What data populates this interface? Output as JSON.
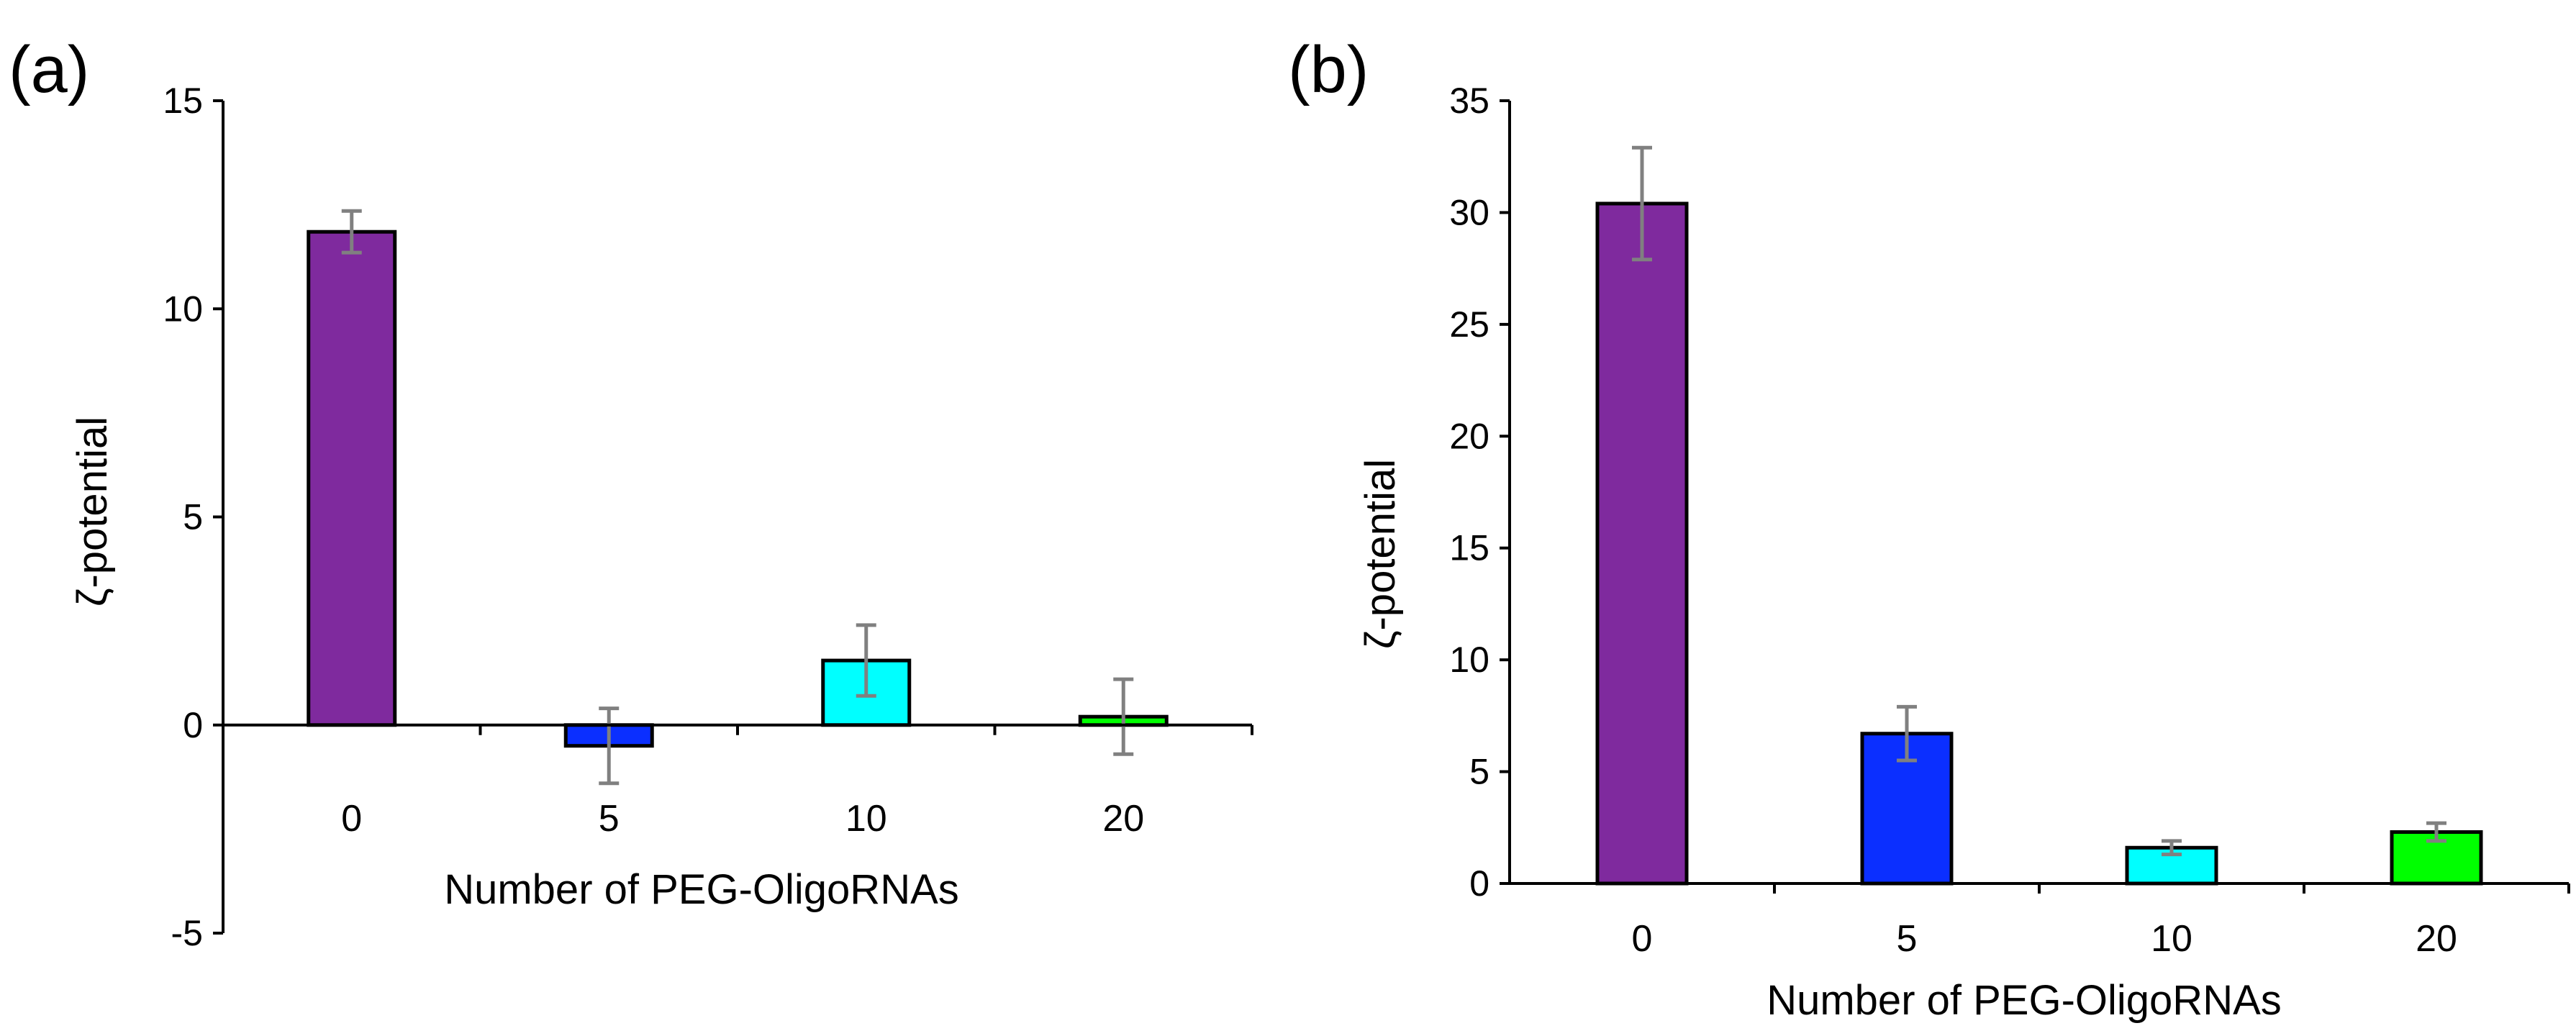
{
  "chart_data": [
    {
      "panel_label": "(a)",
      "type": "bar",
      "categories": [
        "0",
        "5",
        "10",
        "20"
      ],
      "values": [
        11.85,
        -0.5,
        1.55,
        0.2
      ],
      "errors": [
        0.5,
        0.9,
        0.85,
        0.9
      ],
      "colors": [
        "#7f2a9e",
        "#0b2fff",
        "#00ffff",
        "#00ff00"
      ],
      "error_color": "#808080",
      "ylim": [
        -5,
        15
      ],
      "yticks": [
        -5,
        0,
        5,
        10,
        15
      ],
      "xlabel": "Number of PEG-OligoRNAs",
      "ylabel": "ζ-potential"
    },
    {
      "panel_label": "(b)",
      "type": "bar",
      "categories": [
        "0",
        "5",
        "10",
        "20"
      ],
      "values": [
        30.4,
        6.7,
        1.6,
        2.3
      ],
      "errors": [
        2.5,
        1.2,
        0.3,
        0.4
      ],
      "colors": [
        "#7f2a9e",
        "#0b2fff",
        "#00ffff",
        "#00ff00"
      ],
      "error_color": "#808080",
      "ylim": [
        0,
        35
      ],
      "yticks": [
        0,
        5,
        10,
        15,
        20,
        25,
        30,
        35
      ],
      "xlabel": "Number of PEG-OligoRNAs",
      "ylabel": "ζ-potential"
    }
  ]
}
